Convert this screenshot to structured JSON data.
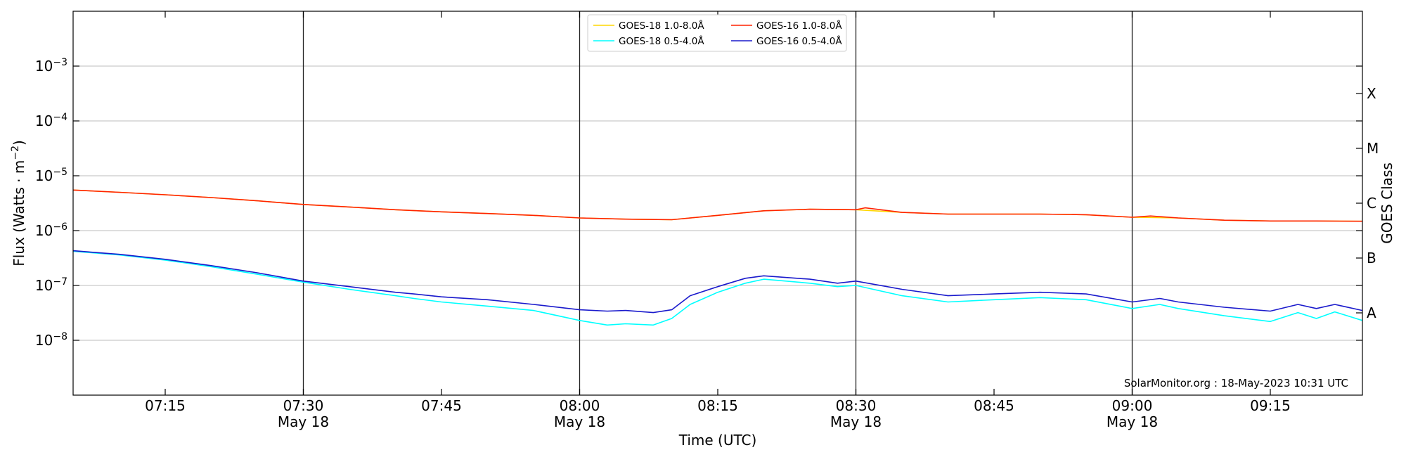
{
  "chart_data": {
    "type": "line",
    "xlabel": "Time (UTC)",
    "ylabel_main": "Flux (Watts · m",
    "ylabel_sup": "−2",
    "ylabel_close": ")",
    "y2label": "GOES Class",
    "x_range": [
      "07:05",
      "09:25"
    ],
    "ylim": [
      1e-09,
      0.01
    ],
    "yscale": "log",
    "grid": "horizontal at each decade",
    "vertical_lines_at": [
      "07:30",
      "08:00",
      "08:30",
      "09:00"
    ],
    "x_ticks": [
      {
        "t": "07:15",
        "label": "07:15",
        "date": ""
      },
      {
        "t": "07:30",
        "label": "07:30",
        "date": "May 18"
      },
      {
        "t": "07:45",
        "label": "07:45",
        "date": ""
      },
      {
        "t": "08:00",
        "label": "08:00",
        "date": "May 18"
      },
      {
        "t": "08:15",
        "label": "08:15",
        "date": ""
      },
      {
        "t": "08:30",
        "label": "08:30",
        "date": "May 18"
      },
      {
        "t": "08:45",
        "label": "08:45",
        "date": ""
      },
      {
        "t": "09:00",
        "label": "09:00",
        "date": "May 18"
      },
      {
        "t": "09:15",
        "label": "09:15",
        "date": ""
      }
    ],
    "y_ticks": [
      {
        "exp": -8,
        "label": "10",
        "sup": "−8"
      },
      {
        "exp": -7,
        "label": "10",
        "sup": "−7"
      },
      {
        "exp": -6,
        "label": "10",
        "sup": "−6"
      },
      {
        "exp": -5,
        "label": "10",
        "sup": "−5"
      },
      {
        "exp": -4,
        "label": "10",
        "sup": "−4"
      },
      {
        "exp": -3,
        "label": "10",
        "sup": "−3"
      }
    ],
    "goes_classes": [
      {
        "label": "A",
        "exp": -7.5
      },
      {
        "label": "B",
        "exp": -6.5
      },
      {
        "label": "C",
        "exp": -5.5
      },
      {
        "label": "M",
        "exp": -4.5
      },
      {
        "label": "X",
        "exp": -3.5
      }
    ],
    "legend_placement": "top-center",
    "series": [
      {
        "name": "GOES-18 1.0-8.0Å",
        "color": "#ffd700",
        "points": [
          [
            "07:05",
            5.5e-06
          ],
          [
            "07:10",
            5e-06
          ],
          [
            "07:15",
            4.5e-06
          ],
          [
            "07:20",
            4e-06
          ],
          [
            "07:25",
            3.5e-06
          ],
          [
            "07:30",
            3e-06
          ],
          [
            "07:35",
            2.7e-06
          ],
          [
            "07:40",
            2.4e-06
          ],
          [
            "07:45",
            2.2e-06
          ],
          [
            "07:50",
            2.05e-06
          ],
          [
            "07:55",
            1.9e-06
          ],
          [
            "08:00",
            1.7e-06
          ],
          [
            "08:05",
            1.62e-06
          ],
          [
            "08:10",
            1.58e-06
          ],
          [
            "08:15",
            1.9e-06
          ],
          [
            "08:20",
            2.3e-06
          ],
          [
            "08:25",
            2.45e-06
          ],
          [
            "08:30",
            2.4e-06
          ],
          [
            "08:35",
            2.15e-06
          ],
          [
            "08:40",
            2e-06
          ],
          [
            "08:45",
            2e-06
          ],
          [
            "08:50",
            2e-06
          ],
          [
            "08:55",
            1.95e-06
          ],
          [
            "09:00",
            1.75e-06
          ],
          [
            "09:05",
            1.7e-06
          ],
          [
            "09:10",
            1.55e-06
          ],
          [
            "09:15",
            1.5e-06
          ],
          [
            "09:20",
            1.5e-06
          ],
          [
            "09:25",
            1.48e-06
          ]
        ]
      },
      {
        "name": "GOES-18 0.5-4.0Å",
        "color": "#00ffff",
        "points": [
          [
            "07:05",
            4.2e-07
          ],
          [
            "07:10",
            3.6e-07
          ],
          [
            "07:15",
            2.9e-07
          ],
          [
            "07:20",
            2.2e-07
          ],
          [
            "07:25",
            1.6e-07
          ],
          [
            "07:30",
            1.15e-07
          ],
          [
            "07:35",
            8.5e-08
          ],
          [
            "07:40",
            6.5e-08
          ],
          [
            "07:42",
            5.8e-08
          ],
          [
            "07:45",
            5e-08
          ],
          [
            "07:50",
            4.2e-08
          ],
          [
            "07:55",
            3.5e-08
          ],
          [
            "08:00",
            2.3e-08
          ],
          [
            "08:03",
            1.9e-08
          ],
          [
            "08:05",
            2e-08
          ],
          [
            "08:08",
            1.9e-08
          ],
          [
            "08:10",
            2.5e-08
          ],
          [
            "08:12",
            4.5e-08
          ],
          [
            "08:15",
            7.5e-08
          ],
          [
            "08:18",
            1.1e-07
          ],
          [
            "08:20",
            1.3e-07
          ],
          [
            "08:25",
            1.1e-07
          ],
          [
            "08:28",
            9.5e-08
          ],
          [
            "08:30",
            1e-07
          ],
          [
            "08:35",
            6.5e-08
          ],
          [
            "08:40",
            5e-08
          ],
          [
            "08:45",
            5.5e-08
          ],
          [
            "08:50",
            6e-08
          ],
          [
            "08:55",
            5.5e-08
          ],
          [
            "09:00",
            3.8e-08
          ],
          [
            "09:03",
            4.5e-08
          ],
          [
            "09:05",
            3.8e-08
          ],
          [
            "09:10",
            2.8e-08
          ],
          [
            "09:15",
            2.2e-08
          ],
          [
            "09:18",
            3.2e-08
          ],
          [
            "09:20",
            2.5e-08
          ],
          [
            "09:22",
            3.3e-08
          ],
          [
            "09:25",
            2.3e-08
          ]
        ]
      },
      {
        "name": "GOES-16 1.0-8.0Å",
        "color": "#ff2200",
        "points": [
          [
            "07:05",
            5.5e-06
          ],
          [
            "07:10",
            5e-06
          ],
          [
            "07:15",
            4.5e-06
          ],
          [
            "07:20",
            4e-06
          ],
          [
            "07:25",
            3.5e-06
          ],
          [
            "07:30",
            3e-06
          ],
          [
            "07:35",
            2.7e-06
          ],
          [
            "07:40",
            2.4e-06
          ],
          [
            "07:45",
            2.2e-06
          ],
          [
            "07:50",
            2.05e-06
          ],
          [
            "07:55",
            1.9e-06
          ],
          [
            "08:00",
            1.7e-06
          ],
          [
            "08:05",
            1.62e-06
          ],
          [
            "08:10",
            1.58e-06
          ],
          [
            "08:15",
            1.9e-06
          ],
          [
            "08:20",
            2.3e-06
          ],
          [
            "08:25",
            2.45e-06
          ],
          [
            "08:30",
            2.4e-06
          ],
          [
            "08:31",
            2.6e-06
          ],
          [
            "08:35",
            2.15e-06
          ],
          [
            "08:40",
            2e-06
          ],
          [
            "08:45",
            2e-06
          ],
          [
            "08:50",
            2e-06
          ],
          [
            "08:55",
            1.95e-06
          ],
          [
            "09:00",
            1.75e-06
          ],
          [
            "09:02",
            1.85e-06
          ],
          [
            "09:05",
            1.7e-06
          ],
          [
            "09:10",
            1.55e-06
          ],
          [
            "09:15",
            1.5e-06
          ],
          [
            "09:20",
            1.5e-06
          ],
          [
            "09:25",
            1.48e-06
          ]
        ]
      },
      {
        "name": "GOES-16 0.5-4.0Å",
        "color": "#1a1acc",
        "points": [
          [
            "07:05",
            4.3e-07
          ],
          [
            "07:10",
            3.7e-07
          ],
          [
            "07:15",
            3e-07
          ],
          [
            "07:20",
            2.3e-07
          ],
          [
            "07:25",
            1.7e-07
          ],
          [
            "07:30",
            1.2e-07
          ],
          [
            "07:35",
            9.5e-08
          ],
          [
            "07:40",
            7.5e-08
          ],
          [
            "07:42",
            7e-08
          ],
          [
            "07:45",
            6.2e-08
          ],
          [
            "07:50",
            5.5e-08
          ],
          [
            "07:55",
            4.5e-08
          ],
          [
            "08:00",
            3.6e-08
          ],
          [
            "08:03",
            3.4e-08
          ],
          [
            "08:05",
            3.5e-08
          ],
          [
            "08:08",
            3.2e-08
          ],
          [
            "08:10",
            3.6e-08
          ],
          [
            "08:12",
            6.5e-08
          ],
          [
            "08:15",
            9.5e-08
          ],
          [
            "08:18",
            1.35e-07
          ],
          [
            "08:20",
            1.5e-07
          ],
          [
            "08:25",
            1.3e-07
          ],
          [
            "08:28",
            1.1e-07
          ],
          [
            "08:30",
            1.2e-07
          ],
          [
            "08:35",
            8.5e-08
          ],
          [
            "08:40",
            6.5e-08
          ],
          [
            "08:45",
            7e-08
          ],
          [
            "08:50",
            7.5e-08
          ],
          [
            "08:55",
            7e-08
          ],
          [
            "09:00",
            5e-08
          ],
          [
            "09:03",
            5.8e-08
          ],
          [
            "09:05",
            5e-08
          ],
          [
            "09:10",
            4e-08
          ],
          [
            "09:15",
            3.4e-08
          ],
          [
            "09:18",
            4.5e-08
          ],
          [
            "09:20",
            3.8e-08
          ],
          [
            "09:22",
            4.5e-08
          ],
          [
            "09:25",
            3.5e-08
          ]
        ]
      }
    ],
    "annotation": "SolarMonitor.org : 18-May-2023 10:31 UTC"
  }
}
